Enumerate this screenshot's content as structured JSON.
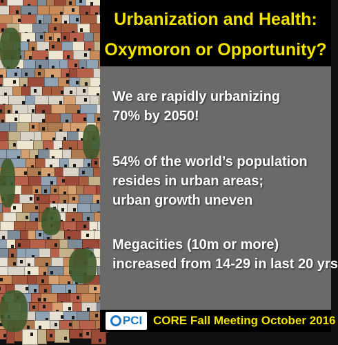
{
  "slide": {
    "title_line1": "Urbanization and Health:",
    "title_line2": "Oxymoron or Opportunity?",
    "bullets": [
      {
        "line1": "We are rapidly urbanizing",
        "line2": "70% by 2050!"
      },
      {
        "line1": "54% of the world’s population",
        "line2": "resides in urban areas;",
        "line3": "urban growth uneven"
      },
      {
        "line1": "Megacities (10m or more)",
        "line2": "increased from 14-29 in last 20 yrs"
      }
    ],
    "footer": {
      "logo_text": "PCI",
      "event": "CORE Fall Meeting October 2016"
    }
  },
  "colors": {
    "title": "#f2e200",
    "panel": "#6a6a6a",
    "band": "#000000",
    "logo": "#1a78c2"
  },
  "icons": [
    "pci-logo-icon"
  ]
}
